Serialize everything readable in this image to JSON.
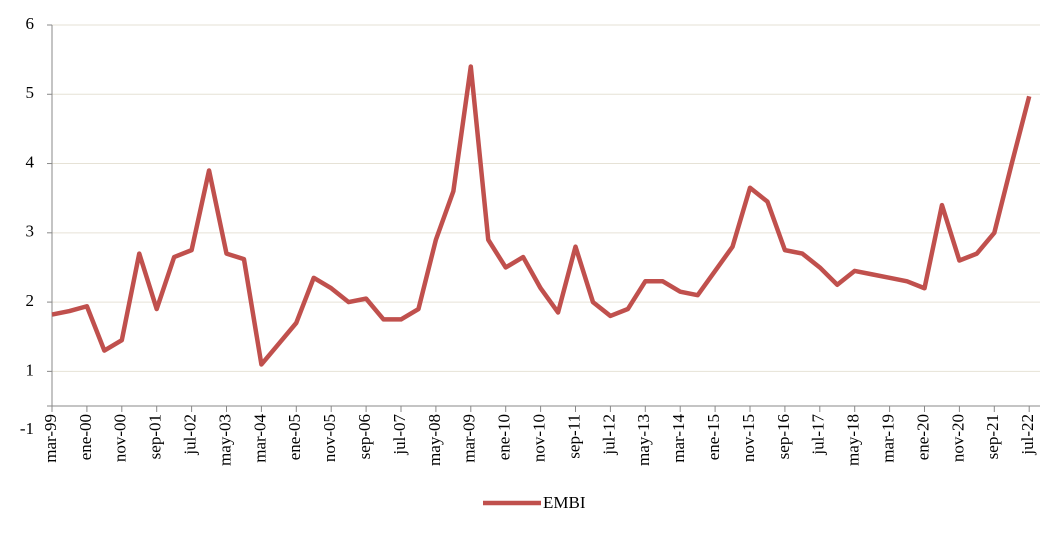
{
  "chart_data": {
    "type": "line",
    "categories": [
      "mar-99",
      null,
      "ene-00",
      null,
      "nov-00",
      null,
      "sep-01",
      null,
      "jul-02",
      null,
      "may-03",
      null,
      "mar-04",
      null,
      "ene-05",
      null,
      "nov-05",
      null,
      "sep-06",
      null,
      "jul-07",
      null,
      "may-08",
      null,
      "mar-09",
      null,
      "ene-10",
      null,
      "nov-10",
      null,
      "sep-11",
      null,
      "jul-12",
      null,
      "may-13",
      null,
      "mar-14",
      null,
      "ene-15",
      null,
      "nov-15",
      null,
      "sep-16",
      null,
      "jul-17",
      null,
      "may-18",
      null,
      "mar-19",
      null,
      "ene-20",
      null,
      "nov-20",
      null,
      "sep-21",
      null,
      "jul-22"
    ],
    "series": [
      {
        "name": "EMBI",
        "color": "#c0504d",
        "values": [
          1.82,
          1.87,
          1.94,
          1.3,
          1.45,
          2.7,
          1.9,
          2.65,
          2.75,
          3.9,
          2.7,
          2.62,
          1.1,
          1.4,
          1.7,
          2.35,
          2.2,
          2.0,
          2.05,
          1.75,
          1.75,
          1.9,
          2.9,
          3.6,
          5.4,
          2.9,
          2.5,
          2.65,
          2.2,
          1.85,
          2.8,
          2.0,
          1.8,
          1.9,
          2.3,
          2.3,
          2.15,
          2.1,
          2.45,
          2.8,
          3.65,
          3.45,
          2.75,
          2.7,
          2.5,
          2.25,
          2.45,
          2.4,
          2.35,
          2.3,
          2.2,
          3.4,
          2.6,
          2.7,
          3.0,
          4.0,
          4.97
        ]
      }
    ],
    "ylim": [
      0.5,
      6
    ],
    "yticks": [
      {
        "value": 0.5,
        "label": "-1"
      },
      1,
      2,
      3,
      4,
      5,
      6
    ],
    "grid": true,
    "legend": "bottom"
  }
}
